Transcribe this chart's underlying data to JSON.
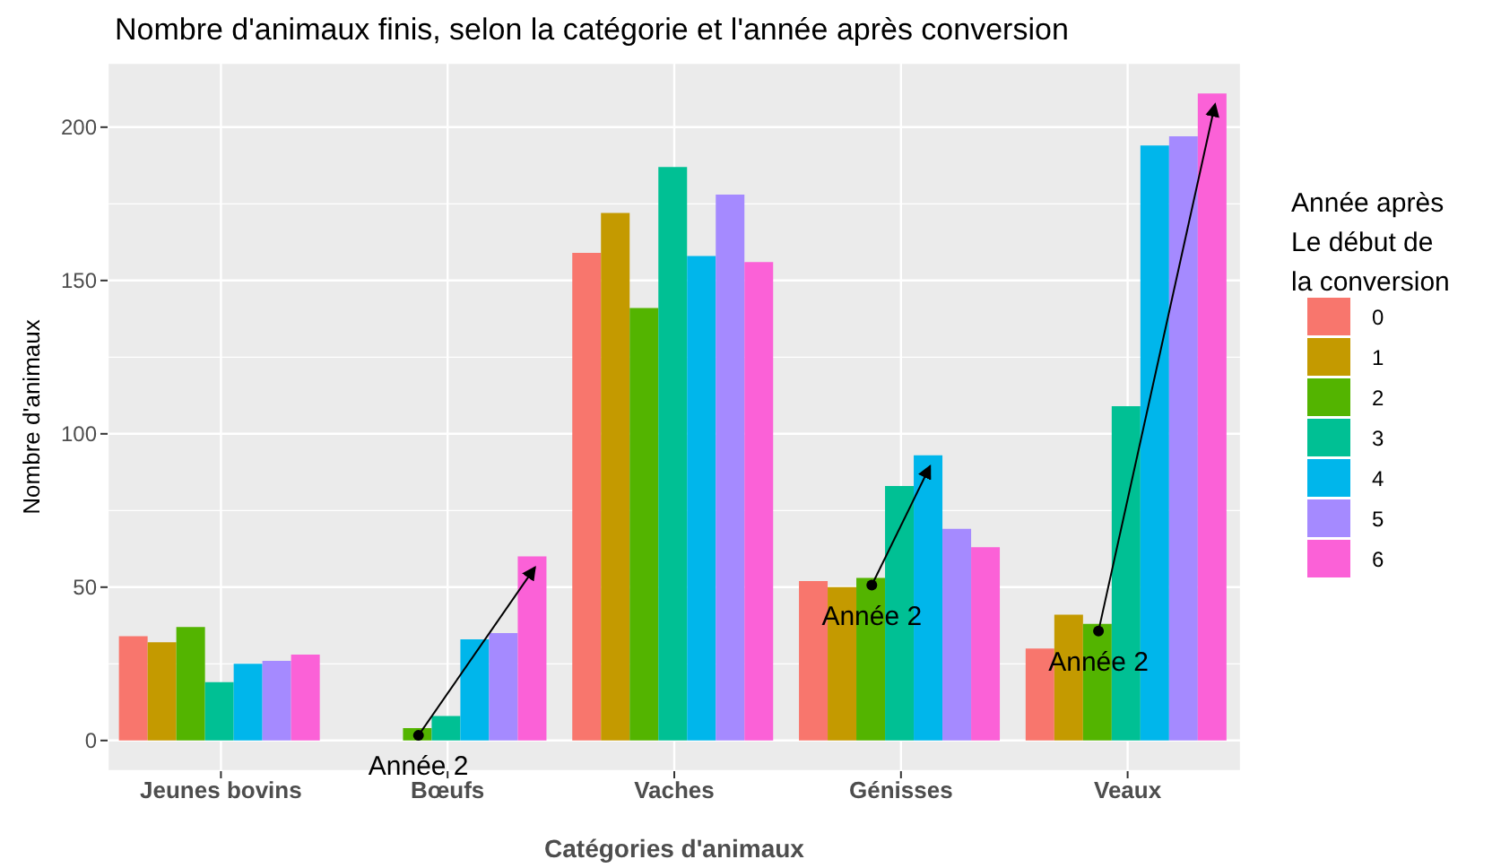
{
  "chart_data": {
    "type": "bar",
    "title": "Nombre d'animaux finis, selon la catégorie et l'année après conversion",
    "xlabel": "Catégories d'animaux",
    "ylabel": "Nombre d'animaux",
    "legend_title": "Année après\nLe début de\nla conversion",
    "categories": [
      "Jeunes bovins",
      "Bœufs",
      "Vaches",
      "Génisses",
      "Veaux"
    ],
    "series": [
      {
        "name": "0",
        "color": "#f8766d",
        "values": [
          34,
          null,
          159,
          52,
          30
        ]
      },
      {
        "name": "1",
        "color": "#c49a00",
        "values": [
          32,
          null,
          172,
          50,
          41
        ]
      },
      {
        "name": "2",
        "color": "#53b400",
        "values": [
          37,
          4,
          141,
          53,
          38
        ]
      },
      {
        "name": "3",
        "color": "#00c094",
        "values": [
          19,
          8,
          187,
          83,
          109
        ]
      },
      {
        "name": "4",
        "color": "#00b6eb",
        "values": [
          25,
          33,
          158,
          93,
          194
        ]
      },
      {
        "name": "5",
        "color": "#a58aff",
        "values": [
          26,
          35,
          178,
          69,
          197
        ]
      },
      {
        "name": "6",
        "color": "#fb61d7",
        "values": [
          28,
          60,
          156,
          63,
          211
        ]
      }
    ],
    "ylim": [
      -10,
      221
    ],
    "yticks": [
      0,
      50,
      100,
      150,
      200
    ],
    "grid": true,
    "legend": "right",
    "annotations": [
      "Année 2",
      "Année 2",
      "Année 2"
    ]
  }
}
